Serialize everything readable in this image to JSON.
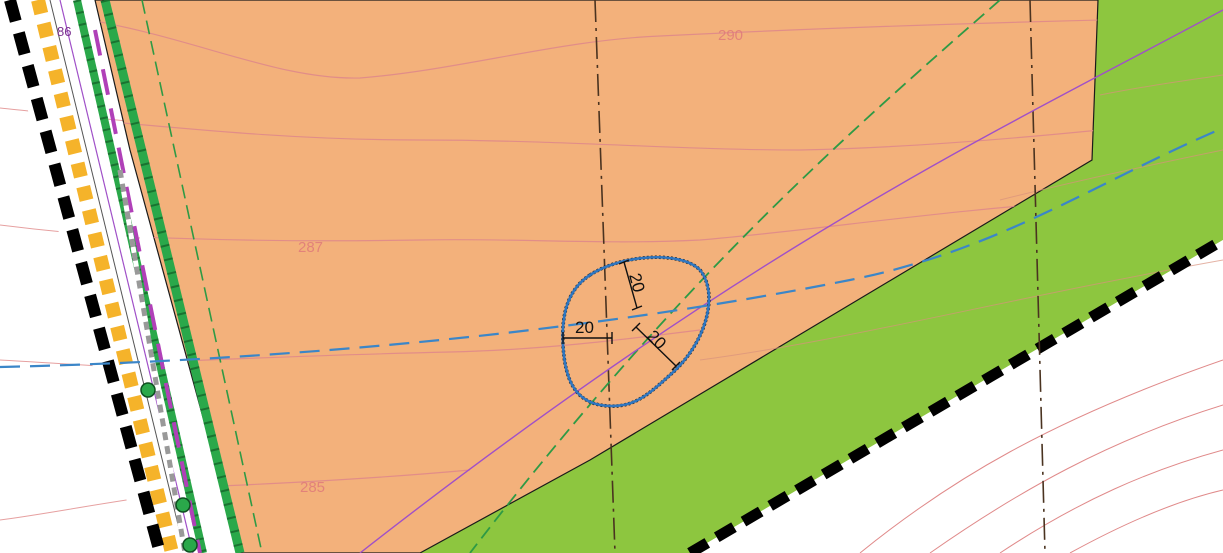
{
  "map": {
    "parcel_number": "86",
    "contour_labels": [
      "290",
      "287",
      "285"
    ],
    "buffer_dimensions": [
      "20",
      "20",
      "20"
    ]
  },
  "colors": {
    "orange_zone": "#f3b17b",
    "green_zone": "#8dc63f",
    "contour": "#e08a8a",
    "blue_dash": "#3b86c8",
    "green_dash": "#2e9a45",
    "brown_dash": "#4a3320",
    "purple_line": "#a050c8",
    "boundary": "#000000",
    "hatch_yellow": "#f5b32a",
    "strip_green": "#2aa84a"
  }
}
